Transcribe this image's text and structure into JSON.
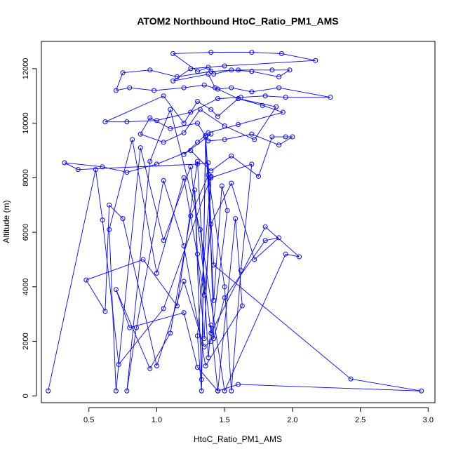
{
  "chart_data": {
    "type": "line",
    "title": "ATOM2 Northbound HtoC_Ratio_PM1_AMS",
    "xlabel": "HtoC_Ratio_PM1_AMS",
    "ylabel": "Altitude (m)",
    "xlim": [
      0.15,
      3.05
    ],
    "ylim": [
      -250,
      13000
    ],
    "xticks": [
      0.5,
      1.0,
      1.5,
      2.0,
      2.5,
      3.0
    ],
    "xtick_labels": [
      "0.5",
      "1.0",
      "1.5",
      "2.0",
      "2.5",
      "3.0"
    ],
    "yticks": [
      0,
      2000,
      4000,
      6000,
      8000,
      10000,
      12000
    ],
    "ytick_labels": [
      "0",
      "2000",
      "4000",
      "6000",
      "8000",
      "10000",
      "12000"
    ],
    "grid": false,
    "legend": "none",
    "series_color": "#0000ff",
    "markers": "open-circle",
    "series": [
      {
        "x": [
          0.2,
          0.55,
          0.6,
          0.72,
          1.05,
          1.4,
          1.35,
          1.3,
          1.28,
          1.33,
          1.36,
          1.42,
          2.43,
          2.95,
          1.6,
          1.45,
          1.3,
          1.2,
          0.8,
          0.7,
          0.95,
          1.1,
          1.25,
          1.38,
          1.5,
          1.55,
          1.62,
          1.7,
          1.4,
          1.3,
          1.33,
          1.36,
          1.42,
          1.48,
          1.52,
          1.4,
          1.35,
          1.2,
          1.0,
          0.75,
          0.65,
          0.62,
          0.48,
          0.9,
          1.15,
          1.3,
          1.38,
          1.4,
          1.45,
          1.58,
          1.63,
          1.36,
          1.2,
          1.05,
          0.85,
          0.78,
          0.95,
          1.1,
          1.32,
          1.5,
          1.95,
          2.05,
          1.8,
          1.4,
          1.25,
          1.05,
          0.88,
          0.7,
          0.65,
          0.82,
          1.0,
          1.2,
          1.35,
          1.4,
          1.55,
          1.72,
          1.9,
          1.8,
          1.5,
          1.42,
          1.38,
          1.3,
          0.42,
          0.32,
          0.6,
          0.78,
          1.0,
          1.25,
          1.4,
          1.55,
          1.75,
          1.85,
          1.95,
          2.0,
          1.9,
          1.7,
          1.5,
          1.38,
          1.3,
          1.1,
          0.95,
          0.88,
          1.05,
          1.2,
          1.32,
          1.5,
          1.72,
          1.88,
          1.6,
          1.45,
          1.4,
          1.3,
          1.2,
          1.05,
          0.62,
          0.78,
          1.0,
          1.25,
          1.45,
          1.62,
          1.8,
          1.95,
          2.28,
          1.9,
          1.7,
          1.55,
          1.45,
          1.35,
          1.2,
          0.98,
          0.8,
          0.7,
          0.75,
          0.95,
          1.15,
          1.4,
          1.6,
          1.85,
          1.98,
          1.9,
          1.7,
          1.55,
          1.42,
          1.38,
          1.3,
          1.12,
          1.4,
          1.7,
          1.92,
          2.17,
          1.5,
          1.25,
          1.12,
          1.38,
          1.43,
          1.6,
          1.78,
          1.93,
          1.6,
          1.38,
          1.3,
          1.2,
          1.4
        ],
        "y": [
          180,
          8300,
          6450,
          1150,
          3200,
          8050,
          2100,
          5200,
          7550,
          600,
          9550,
          4800,
          620,
          180,
          420,
          180,
          1050,
          3050,
          2500,
          3900,
          1000,
          2300,
          6600,
          8100,
          4000,
          180,
          4600,
          8500,
          8000,
          2200,
          180,
          9500,
          3500,
          7700,
          6800,
          2000,
          1800,
          4200,
          1100,
          6500,
          7000,
          3100,
          4250,
          5000,
          3300,
          8600,
          1400,
          2600,
          180,
          6500,
          3300,
          1100,
          5500,
          7900,
          2500,
          180,
          8600,
          10500,
          6100,
          180,
          5200,
          5100,
          6200,
          2300,
          8400,
          5700,
          9100,
          180,
          6100,
          9400,
          4500,
          8000,
          3700,
          6300,
          7800,
          5000,
          5800,
          5700,
          3600,
          2100,
          8550,
          8500,
          8300,
          8550,
          8400,
          8200,
          8500,
          9000,
          8250,
          8800,
          8050,
          9500,
          9500,
          9500,
          9200,
          9600,
          9400,
          9350,
          10000,
          9800,
          10200,
          9600,
          9300,
          9650,
          10500,
          9900,
          9400,
          10600,
          10900,
          10250,
          10500,
          10800,
          10000,
          11000,
          10050,
          10050,
          10100,
          10400,
          10900,
          10950,
          11000,
          10950,
          10950,
          11300,
          11150,
          11300,
          11250,
          11400,
          11300,
          11200,
          11300,
          11200,
          11850,
          11950,
          11700,
          11900,
          11950,
          11950,
          11950,
          11700,
          11900,
          11950,
          11800,
          12050,
          11900,
          12550,
          12600,
          12600,
          12550,
          12300,
          12100,
          12000,
          11550,
          11800,
          11300,
          10900,
          10650,
          10400,
          9950,
          9650,
          9300,
          8850,
          9600
        ]
      }
    ]
  }
}
